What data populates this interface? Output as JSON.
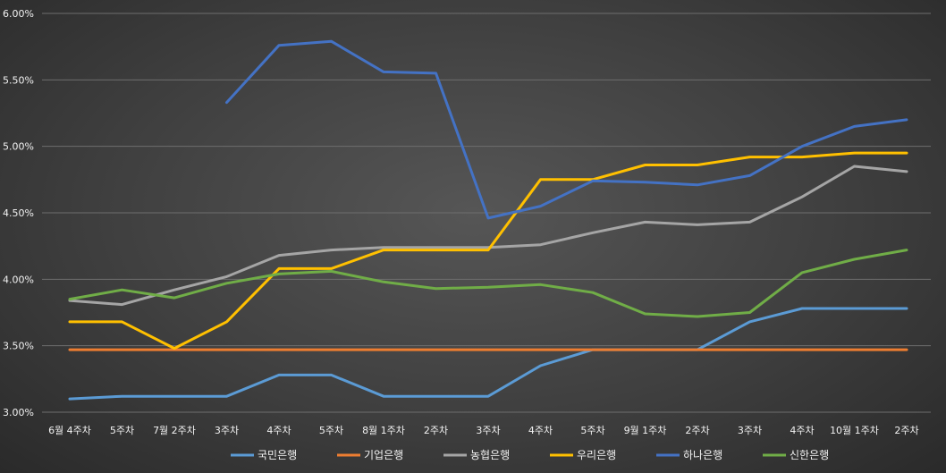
{
  "chart_data": {
    "type": "line",
    "title": "",
    "xlabel": "",
    "ylabel": "",
    "ylim": [
      3.0,
      6.0
    ],
    "y_ticks": [
      3.0,
      3.5,
      4.0,
      4.5,
      5.0,
      5.5,
      6.0
    ],
    "y_tick_labels": [
      "3.00%",
      "3.50%",
      "4.00%",
      "4.50%",
      "5.00%",
      "5.50%",
      "6.00%"
    ],
    "grid": true,
    "legend_position": "bottom",
    "categories": [
      "6월 4주차",
      "5주차",
      "7월 2주차",
      "3주차",
      "4주차",
      "5주차",
      "8월 1주차",
      "2주차",
      "3주차",
      "4주차",
      "5주차",
      "9월 1주차",
      "2주차",
      "3주차",
      "4주차",
      "10월 1주차",
      "2주차"
    ],
    "series": [
      {
        "name": "국민은행",
        "color": "#5b9bd5",
        "values": [
          3.1,
          3.12,
          3.12,
          3.12,
          3.28,
          3.28,
          3.12,
          3.12,
          3.12,
          3.35,
          3.47,
          3.47,
          3.47,
          3.68,
          3.78,
          3.78,
          3.78
        ]
      },
      {
        "name": "기업은행",
        "color": "#ed7d31",
        "values": [
          3.47,
          3.47,
          3.47,
          3.47,
          3.47,
          3.47,
          3.47,
          3.47,
          3.47,
          3.47,
          3.47,
          3.47,
          3.47,
          3.47,
          3.47,
          3.47,
          3.47
        ]
      },
      {
        "name": "농협은행",
        "color": "#a5a5a5",
        "values": [
          3.84,
          3.81,
          3.92,
          4.02,
          4.18,
          4.22,
          4.24,
          4.24,
          4.24,
          4.26,
          4.35,
          4.43,
          4.41,
          4.43,
          4.62,
          4.85,
          4.81
        ]
      },
      {
        "name": "우리은행",
        "color": "#ffc000",
        "values": [
          3.68,
          3.68,
          3.48,
          3.68,
          4.08,
          4.08,
          4.22,
          4.22,
          4.22,
          4.75,
          4.75,
          4.86,
          4.86,
          4.92,
          4.92,
          4.95,
          4.95
        ]
      },
      {
        "name": "하나은행",
        "color": "#4472c4",
        "values": [
          null,
          null,
          null,
          5.33,
          5.76,
          5.79,
          5.56,
          5.55,
          4.46,
          4.55,
          4.74,
          4.73,
          4.71,
          4.78,
          5.0,
          5.15,
          5.2
        ]
      },
      {
        "name": "신한은행",
        "color": "#70ad47",
        "values": [
          3.85,
          3.92,
          3.86,
          3.97,
          4.04,
          4.06,
          3.98,
          3.93,
          3.94,
          3.96,
          3.9,
          3.74,
          3.72,
          3.75,
          4.05,
          4.15,
          4.22
        ]
      }
    ]
  }
}
